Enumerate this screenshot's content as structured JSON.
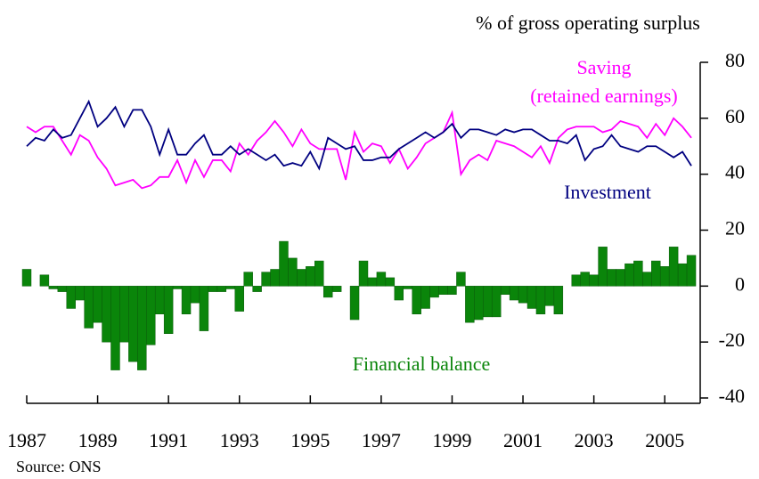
{
  "chart_data": {
    "type": "line_bar",
    "ylabel": "% of gross operating surplus",
    "source": "Source: ONS",
    "x": [
      1987,
      1987.25,
      1987.5,
      1987.75,
      1988,
      1988.25,
      1988.5,
      1988.75,
      1989,
      1989.25,
      1989.5,
      1989.75,
      1990,
      1990.25,
      1990.5,
      1990.75,
      1991,
      1991.25,
      1991.5,
      1991.75,
      1992,
      1992.25,
      1992.5,
      1992.75,
      1993,
      1993.25,
      1993.5,
      1993.75,
      1994,
      1994.25,
      1994.5,
      1994.75,
      1995,
      1995.25,
      1995.5,
      1995.75,
      1996,
      1996.25,
      1996.5,
      1996.75,
      1997,
      1997.25,
      1997.5,
      1997.75,
      1998,
      1998.25,
      1998.5,
      1998.75,
      1999,
      1999.25,
      1999.5,
      1999.75,
      2000,
      2000.25,
      2000.5,
      2000.75,
      2001,
      2001.25,
      2001.5,
      2001.75,
      2002,
      2002.25,
      2002.5,
      2002.75,
      2003,
      2003.25,
      2003.5,
      2003.75,
      2004,
      2004.25,
      2004.5,
      2004.75,
      2005,
      2005.25,
      2005.5,
      2005.75
    ],
    "series": [
      {
        "name": "Saving\n(retained earnings)",
        "kind": "line",
        "color": "#ff00ff",
        "values": [
          57,
          55,
          57,
          57,
          52,
          47,
          54,
          52,
          46,
          42,
          36,
          37,
          38,
          35,
          36,
          39,
          39,
          45,
          37,
          45,
          39,
          45,
          45,
          41,
          51,
          47,
          52,
          55,
          59,
          55,
          50,
          56,
          51,
          49,
          49,
          49,
          38,
          55,
          48,
          51,
          50,
          44,
          49,
          42,
          46,
          51,
          53,
          55,
          62,
          40,
          45,
          47,
          45,
          52,
          51,
          50,
          48,
          46,
          50,
          44,
          53,
          56,
          57,
          57,
          57,
          55,
          56,
          59,
          58,
          57,
          53,
          58,
          54,
          60,
          57,
          53
        ]
      },
      {
        "name": "Investment",
        "kind": "line",
        "color": "#000080",
        "values": [
          50,
          53,
          52,
          56,
          53,
          54,
          60,
          66,
          57,
          60,
          64,
          57,
          63,
          63,
          57,
          47,
          56,
          47,
          47,
          51,
          54,
          47,
          47,
          50,
          47,
          49,
          47,
          45,
          47,
          43,
          44,
          43,
          48,
          42,
          53,
          51,
          49,
          50,
          45,
          45,
          46,
          46,
          49,
          51,
          53,
          55,
          53,
          55,
          58,
          53,
          56,
          56,
          55,
          54,
          56,
          55,
          56,
          56,
          54,
          52,
          52,
          51,
          54,
          45,
          49,
          50,
          54,
          50,
          49,
          48,
          50,
          50,
          48,
          46,
          48,
          43
        ]
      },
      {
        "name": "Financial balance",
        "kind": "bar",
        "color": "#0a850a",
        "values": [
          6,
          0,
          4,
          -1,
          -2,
          -8,
          -5,
          -15,
          -13,
          -20,
          -30,
          -20,
          -27,
          -30,
          -21,
          -10,
          -17,
          -1,
          -10,
          -6,
          -16,
          -2,
          -2,
          -1,
          -9,
          5,
          -2,
          5,
          6,
          16,
          10,
          6,
          7,
          9,
          -4,
          -2,
          0,
          -12,
          9,
          3,
          5,
          3,
          -5,
          -1,
          -10,
          -8,
          -4,
          -3,
          -3,
          5,
          -13,
          -12,
          -11,
          -11,
          -3,
          -5,
          -6,
          -8,
          -10,
          -7,
          -10,
          0,
          4,
          5,
          4,
          14,
          6,
          6,
          8,
          9,
          5,
          9,
          7,
          14,
          8,
          11
        ]
      }
    ],
    "xlim": [
      1987,
      2006
    ],
    "xticks": [
      1987,
      1989,
      1991,
      1993,
      1995,
      1997,
      1999,
      2001,
      2003,
      2005
    ],
    "ylim": [
      -40,
      80
    ],
    "yticks": [
      -40,
      -20,
      0,
      20,
      40,
      60,
      80
    ]
  }
}
